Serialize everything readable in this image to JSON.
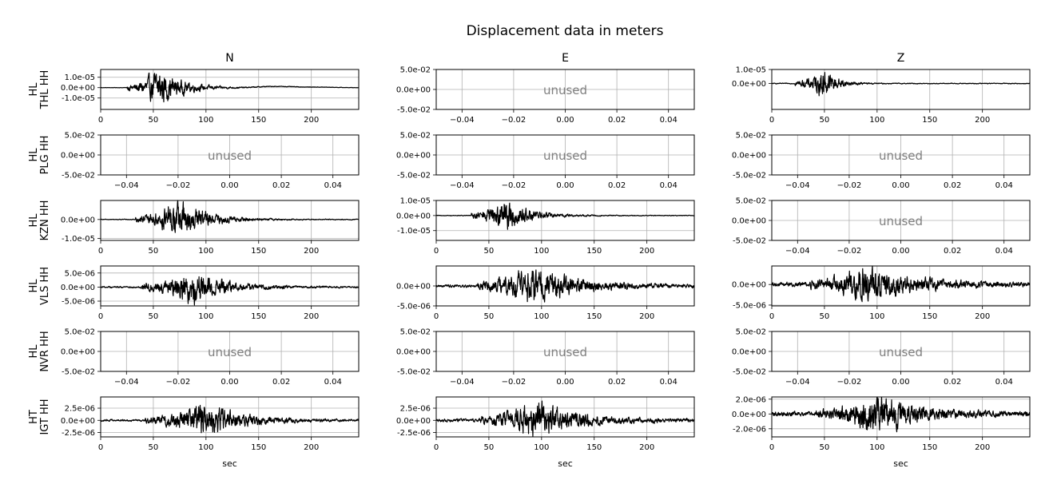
{
  "figure": {
    "title": "Displacement data in meters",
    "xlabel": "sec",
    "unused_label": "unused",
    "trace_color": "#000000",
    "grid_color": "#b0b0b0",
    "unused_color": "#808080"
  },
  "chart_data": {
    "type": "line",
    "title": "Displacement data in meters",
    "columns": [
      "N",
      "E",
      "Z"
    ],
    "rows": [
      {
        "network": "HL",
        "station": "THL",
        "channel": "HH",
        "label": "HL\nTHL HH"
      },
      {
        "network": "HL",
        "station": "PLG",
        "channel": "HH",
        "label": "HL\nPLG HH"
      },
      {
        "network": "HL",
        "station": "KZN",
        "channel": "HH",
        "label": "HL\nKZN HH"
      },
      {
        "network": "HL",
        "station": "VLS",
        "channel": "HH",
        "label": "HL\nVLS HH"
      },
      {
        "network": "HL",
        "station": "NVR",
        "channel": "HH",
        "label": "HL\nNVR HH"
      },
      {
        "network": "HT",
        "station": "IGT",
        "channel": "HH",
        "label": "HT\nIGT HH"
      }
    ],
    "unused_axes": {
      "xlim": [
        -0.05,
        0.05
      ],
      "ylim": [
        -0.05,
        0.05
      ],
      "xticks": [
        "−0.04",
        "−0.02",
        "0.00",
        "0.02",
        "0.04"
      ],
      "xtick_values": [
        -0.04,
        -0.02,
        0.0,
        0.02,
        0.04
      ],
      "yticks": [
        "5.0e-02",
        "0.0e+00",
        "-5.0e-02"
      ],
      "ytick_values": [
        0.05,
        0.0,
        -0.05
      ]
    },
    "data_xticks": [
      "0",
      "50",
      "100",
      "150",
      "200"
    ],
    "data_xtick_values": [
      0,
      50,
      100,
      150,
      200
    ],
    "panels": [
      {
        "row": 0,
        "col": 0,
        "unused": false,
        "xlim": [
          0,
          245
        ],
        "ylim": [
          -2.1e-05,
          1.75e-05
        ],
        "yticks": [
          "1.0e-05",
          "0.0e+00",
          "-1.0e-05"
        ],
        "ytick_values": [
          1e-05,
          0,
          -1e-05
        ],
        "envelope": {
          "onset": 25,
          "peak_time": 55,
          "peak_amp": 1.8e-05,
          "decay": 22,
          "noise": 2e-07,
          "drift": [
            [
              130,
              0
            ],
            [
              165,
              1.2e-06
            ],
            [
              200,
              6e-07
            ],
            [
              245,
              0
            ]
          ]
        }
      },
      {
        "row": 0,
        "col": 1,
        "unused": true
      },
      {
        "row": 0,
        "col": 2,
        "unused": false,
        "xlim": [
          0,
          245
        ],
        "ylim": [
          -1.85e-05,
          1e-05
        ],
        "yticks": [
          "1.0e-05",
          "0.0e+00"
        ],
        "ytick_values": [
          1e-05,
          0
        ],
        "envelope": {
          "onset": 22,
          "peak_time": 50,
          "peak_amp": 1.05e-05,
          "decay": 12,
          "noise": 3e-07,
          "drift": []
        }
      },
      {
        "row": 1,
        "col": 0,
        "unused": true
      },
      {
        "row": 1,
        "col": 1,
        "unused": true
      },
      {
        "row": 1,
        "col": 2,
        "unused": true
      },
      {
        "row": 2,
        "col": 0,
        "unused": false,
        "xlim": [
          0,
          245
        ],
        "ylim": [
          -1.1e-05,
          1e-05
        ],
        "yticks": [
          "0.0e+00",
          "-1.0e-05"
        ],
        "ytick_values": [
          0,
          -1e-05
        ],
        "envelope": {
          "onset": 33,
          "peak_time": 75,
          "peak_amp": 1.05e-05,
          "decay": 25,
          "noise": 2e-07,
          "drift": []
        }
      },
      {
        "row": 2,
        "col": 1,
        "unused": false,
        "xlim": [
          0,
          245
        ],
        "ylim": [
          -1.65e-05,
          1e-05
        ],
        "yticks": [
          "1.0e-05",
          "0.0e+00",
          "-1.0e-05"
        ],
        "ytick_values": [
          1e-05,
          0,
          -1e-05
        ],
        "envelope": {
          "onset": 33,
          "peak_time": 65,
          "peak_amp": 1.1e-05,
          "decay": 22,
          "noise": 2.5e-07,
          "drift": []
        }
      },
      {
        "row": 2,
        "col": 2,
        "unused": true
      },
      {
        "row": 3,
        "col": 0,
        "unused": false,
        "xlim": [
          0,
          245
        ],
        "ylim": [
          -6.7e-06,
          7.5e-06
        ],
        "yticks": [
          "5.0e-06",
          "0.0e+00",
          "-5.0e-06"
        ],
        "ytick_values": [
          5e-06,
          0,
          -5e-06
        ],
        "envelope": {
          "onset": 38,
          "peak_time": 87,
          "peak_amp": 6.5e-06,
          "decay": 28,
          "noise": 3e-07,
          "drift": []
        }
      },
      {
        "row": 3,
        "col": 1,
        "unused": false,
        "xlim": [
          0,
          245
        ],
        "ylim": [
          -5e-06,
          5e-06
        ],
        "yticks": [
          "0.0e+00",
          "-5.0e-06"
        ],
        "ytick_values": [
          0,
          -5e-06
        ],
        "envelope": {
          "onset": 38,
          "peak_time": 92,
          "peak_amp": 4.8e-06,
          "decay": 40,
          "noise": 3.5e-07,
          "drift": []
        }
      },
      {
        "row": 3,
        "col": 2,
        "unused": false,
        "xlim": [
          0,
          245
        ],
        "ylim": [
          -5.2e-06,
          4.5e-06
        ],
        "yticks": [
          "0.0e+00",
          "-5.0e-06"
        ],
        "ytick_values": [
          0,
          -5e-06
        ],
        "envelope": {
          "onset": 36,
          "peak_time": 88,
          "peak_amp": 4.6e-06,
          "decay": 40,
          "noise": 5e-07,
          "drift": []
        }
      },
      {
        "row": 4,
        "col": 0,
        "unused": true
      },
      {
        "row": 4,
        "col": 1,
        "unused": true
      },
      {
        "row": 4,
        "col": 2,
        "unused": true
      },
      {
        "row": 5,
        "col": 0,
        "unused": false,
        "xlim": [
          0,
          245
        ],
        "ylim": [
          -3.4e-06,
          4.8e-06
        ],
        "yticks": [
          "2.5e-06",
          "0.0e+00",
          "-2.5e-06"
        ],
        "ytick_values": [
          2.5e-06,
          0,
          -2.5e-06
        ],
        "envelope": {
          "onset": 42,
          "peak_time": 100,
          "peak_amp": 3.6e-06,
          "decay": 32,
          "noise": 2e-07,
          "drift": []
        }
      },
      {
        "row": 5,
        "col": 1,
        "unused": false,
        "xlim": [
          0,
          245
        ],
        "ylim": [
          -3.4e-06,
          4.8e-06
        ],
        "yticks": [
          "2.5e-06",
          "0.0e+00",
          "-2.5e-06"
        ],
        "ytick_values": [
          2.5e-06,
          0,
          -2.5e-06
        ],
        "envelope": {
          "onset": 42,
          "peak_time": 96,
          "peak_amp": 3.8e-06,
          "decay": 35,
          "noise": 3e-07,
          "drift": []
        }
      },
      {
        "row": 5,
        "col": 2,
        "unused": false,
        "xlim": [
          0,
          245
        ],
        "ylim": [
          -3.1e-06,
          2.3e-06
        ],
        "yticks": [
          "2.0e-06",
          "0.0e+00",
          "-2.0e-06"
        ],
        "ytick_values": [
          2e-06,
          0,
          -2e-06
        ],
        "envelope": {
          "onset": 42,
          "peak_time": 100,
          "peak_amp": 2.6e-06,
          "decay": 35,
          "noise": 3e-07,
          "drift": []
        }
      }
    ]
  }
}
